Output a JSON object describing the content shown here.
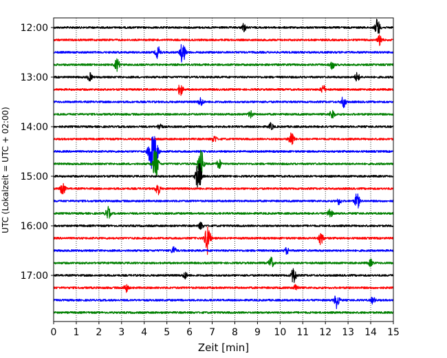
{
  "chart_data": {
    "type": "line",
    "title": "",
    "xlabel": "Zeit  [min]",
    "ylabel": "UTC (Lokalzeit = UTC + 02:00)",
    "xlim": [
      0,
      15
    ],
    "xticks": [
      "0",
      "1",
      "2",
      "3",
      "4",
      "5",
      "6",
      "7",
      "8",
      "9",
      "10",
      "11",
      "12",
      "13",
      "14",
      "15"
    ],
    "yticks": [
      "12:00",
      "13:00",
      "14:00",
      "15:00",
      "16:00",
      "17:00"
    ],
    "vertical_grid": true,
    "grid_style": "dotted",
    "trace_interval_min": 15,
    "trace_colors": [
      "#000000",
      "#ff0000",
      "#0000ff",
      "#008000"
    ],
    "traces": [
      {
        "start": "12:00",
        "events": [
          [
            8.4,
            0.35
          ],
          [
            14.3,
            0.8
          ]
        ]
      },
      {
        "start": "12:15",
        "events": [
          [
            14.4,
            0.45
          ]
        ]
      },
      {
        "start": "12:30",
        "events": [
          [
            4.6,
            0.55
          ],
          [
            5.7,
            1.0
          ]
        ]
      },
      {
        "start": "12:45",
        "events": [
          [
            2.8,
            0.55
          ],
          [
            12.3,
            0.4
          ]
        ]
      },
      {
        "start": "13:00",
        "events": [
          [
            1.6,
            0.35
          ],
          [
            13.4,
            0.4
          ]
        ]
      },
      {
        "start": "13:15",
        "events": [
          [
            5.6,
            0.55
          ],
          [
            11.9,
            0.4
          ]
        ]
      },
      {
        "start": "13:30",
        "events": [
          [
            6.5,
            0.4
          ],
          [
            12.8,
            0.5
          ]
        ]
      },
      {
        "start": "13:45",
        "events": [
          [
            8.7,
            0.3
          ],
          [
            12.3,
            0.45
          ]
        ]
      },
      {
        "start": "14:00",
        "events": [
          [
            4.7,
            0.3
          ],
          [
            9.6,
            0.3
          ]
        ]
      },
      {
        "start": "14:15",
        "events": [
          [
            10.5,
            0.75
          ],
          [
            7.1,
            0.3
          ]
        ]
      },
      {
        "start": "14:30",
        "events": [
          [
            4.3,
            1.6
          ],
          [
            4.5,
            1.3
          ]
        ]
      },
      {
        "start": "14:45",
        "events": [
          [
            4.5,
            1.4
          ],
          [
            6.5,
            1.3
          ],
          [
            7.3,
            0.4
          ]
        ]
      },
      {
        "start": "15:00",
        "events": [
          [
            6.4,
            1.5
          ]
        ]
      },
      {
        "start": "15:15",
        "events": [
          [
            0.4,
            0.6
          ],
          [
            4.6,
            0.55
          ]
        ]
      },
      {
        "start": "15:30",
        "events": [
          [
            13.4,
            0.7
          ],
          [
            12.6,
            0.3
          ]
        ]
      },
      {
        "start": "15:45",
        "events": [
          [
            2.4,
            0.55
          ],
          [
            12.2,
            0.45
          ]
        ]
      },
      {
        "start": "16:00",
        "events": [
          [
            6.5,
            0.3
          ]
        ]
      },
      {
        "start": "16:15",
        "events": [
          [
            6.8,
            1.4
          ],
          [
            11.8,
            0.6
          ]
        ]
      },
      {
        "start": "16:30",
        "events": [
          [
            5.3,
            0.35
          ],
          [
            10.3,
            0.3
          ]
        ]
      },
      {
        "start": "16:45",
        "events": [
          [
            9.6,
            0.5
          ],
          [
            14.0,
            0.3
          ]
        ]
      },
      {
        "start": "17:00",
        "events": [
          [
            10.6,
            0.75
          ],
          [
            5.8,
            0.3
          ]
        ]
      },
      {
        "start": "17:15",
        "events": [
          [
            3.2,
            0.35
          ],
          [
            10.7,
            0.3
          ]
        ]
      },
      {
        "start": "17:30",
        "events": [
          [
            12.5,
            0.7
          ],
          [
            14.1,
            0.3
          ]
        ]
      },
      {
        "start": "17:45",
        "events": []
      }
    ]
  }
}
